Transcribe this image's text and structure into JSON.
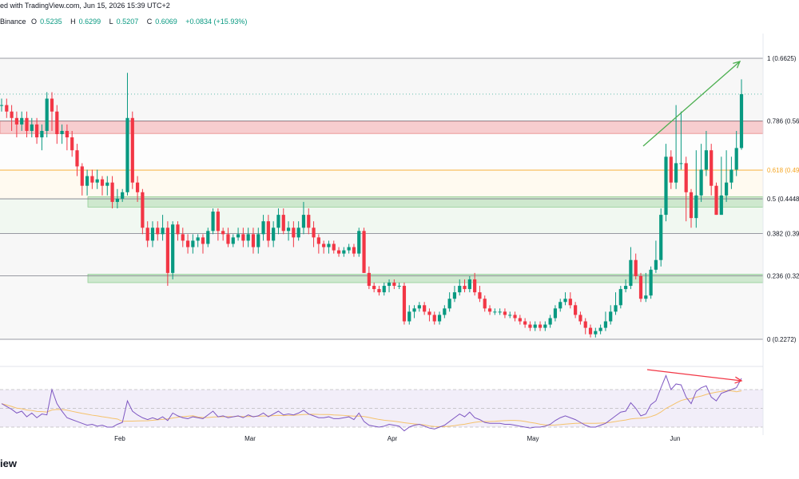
{
  "header": {
    "published_text": "ed with TradingView.com, Jun 15, 2026 15:39 UTC+2",
    "exchange": "Binance",
    "open_label": "O",
    "open": "0.5235",
    "high_label": "H",
    "high": "0.6299",
    "low_label": "L",
    "low": "0.5207",
    "close_label": "C",
    "close": "0.6069",
    "change": "+0.0834 (+15.93%)"
  },
  "footer": {
    "logo_text": "iew"
  },
  "colors": {
    "up": "#089981",
    "down": "#f23645",
    "fib_line": "#787b86",
    "fib_0618": "#f5a623",
    "red_zone": "#f7c5c8",
    "green_zone": "#c8e6c9",
    "rsi": "#7e57c2",
    "rsi_ma": "#f5c26b",
    "arrow_up": "#4caf50",
    "arrow_down": "#f23645"
  },
  "chart_data": {
    "type": "candlestick",
    "x_axis": {
      "labels": [
        "Feb",
        "Mar",
        "Apr",
        "May",
        "Jun"
      ]
    },
    "fib_levels": [
      {
        "ratio": 1,
        "label": "1 (0.6625)",
        "value": 0.6625
      },
      {
        "ratio": 0.786,
        "label": "0.786 (0.56",
        "value": 0.5654
      },
      {
        "ratio": 0.618,
        "label": "0.618 (0.49",
        "value": 0.4893
      },
      {
        "ratio": 0.5,
        "label": "0.5 (0.4448",
        "value": 0.4448
      },
      {
        "ratio": 0.382,
        "label": "0.382 (0.39",
        "value": 0.3912
      },
      {
        "ratio": 0.236,
        "label": "0.236 (0.32",
        "value": 0.3257
      },
      {
        "ratio": 0,
        "label": "0 (0.2272)",
        "value": 0.2272
      }
    ],
    "zones": [
      {
        "kind": "resistance",
        "top": 0.565,
        "bottom": 0.546
      },
      {
        "kind": "support",
        "top": 0.448,
        "bottom": 0.432
      },
      {
        "kind": "support",
        "top": 0.328,
        "bottom": 0.315
      }
    ],
    "candles": [
      [
        0.59,
        0.59,
        0.6,
        0.58
      ],
      [
        0.59,
        0.58,
        0.6,
        0.57
      ],
      [
        0.58,
        0.57,
        0.59,
        0.55
      ],
      [
        0.57,
        0.56,
        0.58,
        0.54
      ],
      [
        0.56,
        0.57,
        0.58,
        0.55
      ],
      [
        0.57,
        0.55,
        0.58,
        0.54
      ],
      [
        0.55,
        0.56,
        0.57,
        0.54
      ],
      [
        0.56,
        0.54,
        0.57,
        0.53
      ],
      [
        0.54,
        0.55,
        0.56,
        0.52
      ],
      [
        0.55,
        0.6,
        0.61,
        0.54
      ],
      [
        0.6,
        0.58,
        0.61,
        0.55
      ],
      [
        0.58,
        0.545,
        0.59,
        0.53
      ],
      [
        0.545,
        0.55,
        0.56,
        0.53
      ],
      [
        0.55,
        0.54,
        0.56,
        0.52
      ],
      [
        0.54,
        0.52,
        0.55,
        0.51
      ],
      [
        0.52,
        0.495,
        0.53,
        0.48
      ],
      [
        0.495,
        0.465,
        0.5,
        0.45
      ],
      [
        0.465,
        0.48,
        0.49,
        0.45
      ],
      [
        0.48,
        0.47,
        0.49,
        0.46
      ],
      [
        0.47,
        0.475,
        0.49,
        0.46
      ],
      [
        0.475,
        0.465,
        0.48,
        0.45
      ],
      [
        0.465,
        0.47,
        0.48,
        0.45
      ],
      [
        0.47,
        0.44,
        0.48,
        0.43
      ],
      [
        0.44,
        0.445,
        0.46,
        0.43
      ],
      [
        0.445,
        0.455,
        0.46,
        0.44
      ],
      [
        0.455,
        0.57,
        0.64,
        0.45
      ],
      [
        0.57,
        0.47,
        0.58,
        0.46
      ],
      [
        0.47,
        0.455,
        0.48,
        0.44
      ],
      [
        0.455,
        0.4,
        0.46,
        0.39
      ],
      [
        0.4,
        0.38,
        0.41,
        0.37
      ],
      [
        0.38,
        0.4,
        0.41,
        0.37
      ],
      [
        0.4,
        0.39,
        0.41,
        0.38
      ],
      [
        0.39,
        0.4,
        0.42,
        0.38
      ],
      [
        0.4,
        0.33,
        0.41,
        0.31
      ],
      [
        0.33,
        0.405,
        0.41,
        0.32
      ],
      [
        0.405,
        0.39,
        0.41,
        0.38
      ],
      [
        0.39,
        0.38,
        0.4,
        0.37
      ],
      [
        0.38,
        0.37,
        0.39,
        0.36
      ],
      [
        0.37,
        0.38,
        0.39,
        0.36
      ],
      [
        0.38,
        0.385,
        0.39,
        0.37
      ],
      [
        0.385,
        0.375,
        0.39,
        0.36
      ],
      [
        0.375,
        0.395,
        0.4,
        0.37
      ],
      [
        0.395,
        0.425,
        0.43,
        0.39
      ],
      [
        0.425,
        0.395,
        0.43,
        0.38
      ],
      [
        0.395,
        0.39,
        0.4,
        0.38
      ],
      [
        0.39,
        0.375,
        0.4,
        0.37
      ],
      [
        0.375,
        0.385,
        0.39,
        0.37
      ],
      [
        0.385,
        0.39,
        0.4,
        0.38
      ],
      [
        0.39,
        0.38,
        0.4,
        0.37
      ],
      [
        0.38,
        0.39,
        0.4,
        0.37
      ],
      [
        0.39,
        0.37,
        0.4,
        0.36
      ],
      [
        0.37,
        0.39,
        0.4,
        0.36
      ],
      [
        0.39,
        0.41,
        0.42,
        0.38
      ],
      [
        0.41,
        0.38,
        0.42,
        0.37
      ],
      [
        0.38,
        0.4,
        0.41,
        0.37
      ],
      [
        0.4,
        0.42,
        0.43,
        0.39
      ],
      [
        0.42,
        0.395,
        0.43,
        0.39
      ],
      [
        0.395,
        0.4,
        0.41,
        0.38
      ],
      [
        0.4,
        0.385,
        0.41,
        0.37
      ],
      [
        0.385,
        0.4,
        0.41,
        0.38
      ],
      [
        0.4,
        0.42,
        0.44,
        0.39
      ],
      [
        0.42,
        0.4,
        0.43,
        0.39
      ],
      [
        0.4,
        0.385,
        0.41,
        0.37
      ],
      [
        0.385,
        0.375,
        0.39,
        0.36
      ],
      [
        0.375,
        0.37,
        0.38,
        0.36
      ],
      [
        0.37,
        0.375,
        0.38,
        0.36
      ],
      [
        0.375,
        0.365,
        0.38,
        0.36
      ],
      [
        0.365,
        0.36,
        0.37,
        0.355
      ],
      [
        0.36,
        0.365,
        0.37,
        0.355
      ],
      [
        0.365,
        0.37,
        0.375,
        0.36
      ],
      [
        0.37,
        0.36,
        0.375,
        0.355
      ],
      [
        0.36,
        0.395,
        0.4,
        0.355
      ],
      [
        0.395,
        0.33,
        0.4,
        0.33
      ],
      [
        0.33,
        0.31,
        0.34,
        0.305
      ],
      [
        0.31,
        0.305,
        0.315,
        0.3
      ],
      [
        0.305,
        0.3,
        0.31,
        0.295
      ],
      [
        0.3,
        0.31,
        0.315,
        0.295
      ],
      [
        0.31,
        0.315,
        0.32,
        0.3
      ],
      [
        0.315,
        0.31,
        0.32,
        0.305
      ],
      [
        0.31,
        0.31,
        0.315,
        0.305
      ],
      [
        0.31,
        0.255,
        0.315,
        0.25
      ],
      [
        0.255,
        0.27,
        0.28,
        0.25
      ],
      [
        0.27,
        0.275,
        0.28,
        0.26
      ],
      [
        0.275,
        0.28,
        0.285,
        0.27
      ],
      [
        0.28,
        0.27,
        0.285,
        0.265
      ],
      [
        0.27,
        0.265,
        0.275,
        0.255
      ],
      [
        0.265,
        0.255,
        0.27,
        0.25
      ],
      [
        0.255,
        0.265,
        0.27,
        0.25
      ],
      [
        0.265,
        0.275,
        0.28,
        0.26
      ],
      [
        0.275,
        0.29,
        0.3,
        0.27
      ],
      [
        0.29,
        0.3,
        0.31,
        0.285
      ],
      [
        0.3,
        0.31,
        0.32,
        0.295
      ],
      [
        0.31,
        0.305,
        0.32,
        0.3
      ],
      [
        0.305,
        0.32,
        0.325,
        0.3
      ],
      [
        0.32,
        0.3,
        0.33,
        0.295
      ],
      [
        0.3,
        0.29,
        0.31,
        0.285
      ],
      [
        0.29,
        0.275,
        0.295,
        0.27
      ],
      [
        0.275,
        0.27,
        0.28,
        0.265
      ],
      [
        0.27,
        0.27,
        0.275,
        0.265
      ],
      [
        0.27,
        0.27,
        0.275,
        0.265
      ],
      [
        0.27,
        0.265,
        0.275,
        0.26
      ],
      [
        0.265,
        0.265,
        0.27,
        0.26
      ],
      [
        0.265,
        0.26,
        0.27,
        0.255
      ],
      [
        0.26,
        0.255,
        0.265,
        0.25
      ],
      [
        0.255,
        0.25,
        0.26,
        0.245
      ],
      [
        0.25,
        0.245,
        0.255,
        0.24
      ],
      [
        0.245,
        0.25,
        0.255,
        0.24
      ],
      [
        0.25,
        0.245,
        0.255,
        0.24
      ],
      [
        0.245,
        0.25,
        0.255,
        0.24
      ],
      [
        0.25,
        0.26,
        0.265,
        0.245
      ],
      [
        0.26,
        0.275,
        0.28,
        0.255
      ],
      [
        0.275,
        0.285,
        0.29,
        0.27
      ],
      [
        0.285,
        0.29,
        0.3,
        0.28
      ],
      [
        0.29,
        0.28,
        0.3,
        0.275
      ],
      [
        0.28,
        0.265,
        0.285,
        0.26
      ],
      [
        0.265,
        0.255,
        0.27,
        0.25
      ],
      [
        0.255,
        0.245,
        0.26,
        0.235
      ],
      [
        0.245,
        0.235,
        0.25,
        0.23
      ],
      [
        0.235,
        0.24,
        0.245,
        0.23
      ],
      [
        0.24,
        0.245,
        0.25,
        0.235
      ],
      [
        0.245,
        0.255,
        0.27,
        0.24
      ],
      [
        0.255,
        0.27,
        0.28,
        0.25
      ],
      [
        0.27,
        0.28,
        0.3,
        0.265
      ],
      [
        0.28,
        0.305,
        0.31,
        0.275
      ],
      [
        0.305,
        0.31,
        0.32,
        0.3
      ],
      [
        0.31,
        0.35,
        0.37,
        0.305
      ],
      [
        0.35,
        0.325,
        0.36,
        0.32
      ],
      [
        0.325,
        0.29,
        0.33,
        0.285
      ],
      [
        0.29,
        0.295,
        0.33,
        0.285
      ],
      [
        0.295,
        0.335,
        0.34,
        0.29
      ],
      [
        0.335,
        0.35,
        0.38,
        0.33
      ],
      [
        0.35,
        0.42,
        0.43,
        0.34
      ],
      [
        0.42,
        0.51,
        0.53,
        0.41
      ],
      [
        0.51,
        0.47,
        0.52,
        0.46
      ],
      [
        0.47,
        0.5,
        0.59,
        0.46
      ],
      [
        0.5,
        0.5,
        0.58,
        0.49
      ],
      [
        0.5,
        0.455,
        0.51,
        0.41
      ],
      [
        0.455,
        0.415,
        0.46,
        0.4
      ],
      [
        0.415,
        0.45,
        0.52,
        0.4
      ],
      [
        0.45,
        0.49,
        0.53,
        0.44
      ],
      [
        0.49,
        0.52,
        0.55,
        0.48
      ],
      [
        0.52,
        0.465,
        0.53,
        0.45
      ],
      [
        0.465,
        0.42,
        0.47,
        0.42
      ],
      [
        0.42,
        0.45,
        0.51,
        0.42
      ],
      [
        0.45,
        0.47,
        0.52,
        0.44
      ],
      [
        0.47,
        0.49,
        0.51,
        0.46
      ],
      [
        0.49,
        0.5235,
        0.55,
        0.48
      ],
      [
        0.5235,
        0.6069,
        0.6299,
        0.5207
      ]
    ],
    "rsi": [
      55,
      52,
      49,
      45,
      47,
      41,
      45,
      40,
      44,
      43,
      70,
      55,
      47,
      40,
      38,
      36,
      34,
      32,
      33,
      31,
      32,
      30,
      30,
      33,
      35,
      58,
      47,
      43,
      40,
      38,
      40,
      38,
      41,
      37,
      45,
      42,
      40,
      39,
      41,
      40,
      39,
      43,
      47,
      41,
      42,
      40,
      41,
      42,
      40,
      43,
      41,
      42,
      45,
      41,
      44,
      47,
      43,
      44,
      43,
      45,
      48,
      44,
      42,
      40,
      40,
      41,
      39,
      39,
      40,
      41,
      38,
      45,
      36,
      32,
      31,
      30,
      31,
      33,
      32,
      31,
      26,
      30,
      32,
      33,
      31,
      29,
      28,
      30,
      32,
      36,
      40,
      44,
      41,
      46,
      40,
      38,
      35,
      34,
      34,
      34,
      33,
      33,
      32,
      31,
      30,
      29,
      30,
      30,
      31,
      33,
      37,
      40,
      42,
      40,
      38,
      35,
      32,
      30,
      30,
      32,
      34,
      38,
      42,
      46,
      47,
      56,
      50,
      42,
      44,
      54,
      58,
      72,
      85,
      70,
      76,
      75,
      62,
      55,
      68,
      72,
      74,
      62,
      58,
      66,
      68,
      70,
      72,
      82
    ]
  }
}
